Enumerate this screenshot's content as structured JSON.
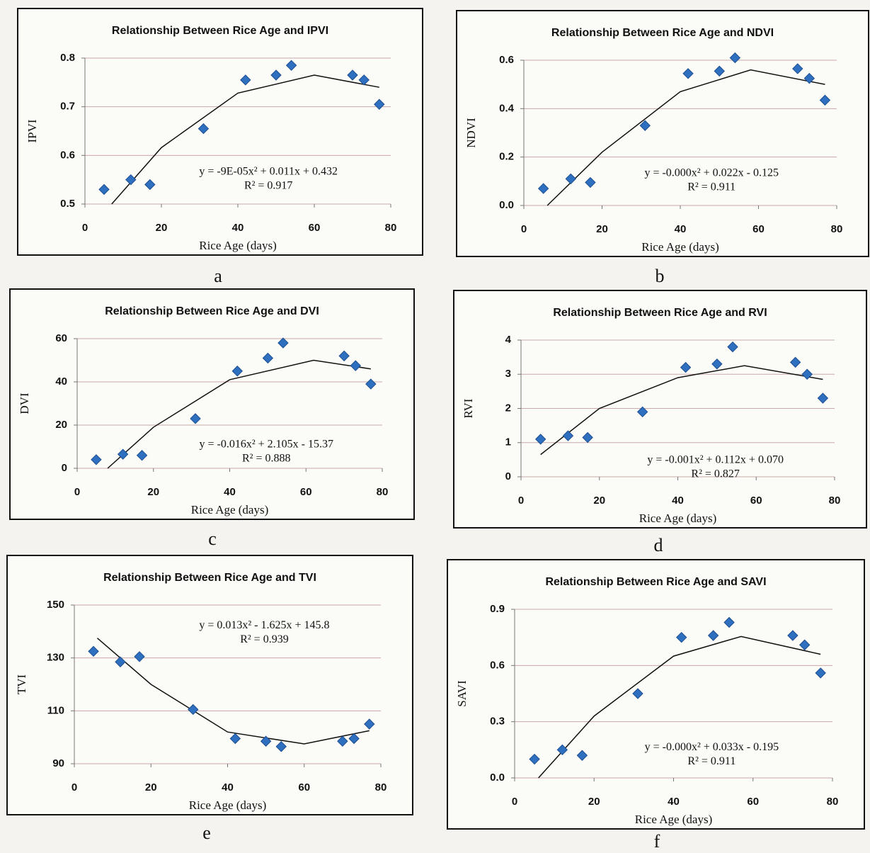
{
  "chart_data": [
    {
      "type": "scatter",
      "title": "Relationship Between Rice Age and IPVI",
      "x_label": "Rice Age (days)",
      "y_label": "IPVI",
      "panel_label": "a",
      "points": {
        "x": [
          5,
          12,
          17,
          31,
          42,
          50,
          54,
          70,
          73,
          77
        ],
        "y": [
          0.53,
          0.55,
          0.54,
          0.655,
          0.755,
          0.765,
          0.785,
          0.765,
          0.755,
          0.705
        ]
      },
      "trendline": {
        "x": [
          7,
          20,
          40,
          60,
          77
        ],
        "y": [
          0.5,
          0.616,
          0.728,
          0.765,
          0.74
        ]
      },
      "equation": "y = -9E-05x² + 0.011x + 0.432",
      "r_squared": "R² = 0.917",
      "xlim": [
        0,
        80
      ],
      "xticks": [
        0,
        20,
        40,
        60,
        80
      ],
      "ylim": [
        0.5,
        0.8
      ],
      "yticks": [
        0.5,
        0.6,
        0.7,
        0.8
      ],
      "color": "#2e6fc0",
      "grid": true
    },
    {
      "type": "scatter",
      "title": "Relationship Between Rice Age and NDVI",
      "x_label": "Rice Age (days)",
      "y_label": "NDVI",
      "panel_label": "b",
      "points": {
        "x": [
          5,
          12,
          17,
          31,
          42,
          50,
          54,
          70,
          73,
          77
        ],
        "y": [
          0.07,
          0.11,
          0.095,
          0.33,
          0.545,
          0.555,
          0.61,
          0.565,
          0.525,
          0.435
        ]
      },
      "trendline": {
        "x": [
          6,
          20,
          40,
          58,
          77
        ],
        "y": [
          0,
          0.22,
          0.47,
          0.56,
          0.5
        ]
      },
      "equation": "y = -0.000x² + 0.022x - 0.125",
      "r_squared": "R² = 0.911",
      "xlim": [
        0,
        80
      ],
      "xticks": [
        0,
        20,
        40,
        60,
        80
      ],
      "ylim": [
        0,
        0.6
      ],
      "yticks": [
        {
          "value": 0,
          "label": "0.0"
        },
        0.2,
        0.4,
        0.6
      ],
      "color": "#2e6fc0",
      "grid": true
    },
    {
      "type": "scatter",
      "title": "Relationship Between Rice Age and DVI",
      "x_label": "Rice Age (days)",
      "y_label": "DVI",
      "panel_label": "c",
      "points": {
        "x": [
          5,
          12,
          17,
          31,
          42,
          50,
          54,
          70,
          73,
          77
        ],
        "y": [
          4,
          6.5,
          6,
          23,
          45,
          51,
          58,
          52,
          47.5,
          39
        ]
      },
      "trendline": {
        "x": [
          8,
          20,
          40,
          62,
          77
        ],
        "y": [
          0,
          19,
          41,
          50,
          46
        ]
      },
      "equation": "y = -0.016x² + 2.105x - 15.37",
      "r_squared": "R² = 0.888",
      "xlim": [
        0,
        80
      ],
      "xticks": [
        0,
        20,
        40,
        60,
        80
      ],
      "ylim": [
        0,
        60
      ],
      "yticks": [
        0,
        20,
        40,
        60
      ],
      "color": "#2e6fc0",
      "grid": true
    },
    {
      "type": "scatter",
      "title": "Relationship Between Rice Age and RVI",
      "x_label": "Rice Age (days)",
      "y_label": "RVI",
      "panel_label": "d",
      "points": {
        "x": [
          5,
          12,
          17,
          31,
          42,
          50,
          54,
          70,
          73,
          77
        ],
        "y": [
          1.1,
          1.2,
          1.15,
          1.9,
          3.2,
          3.3,
          3.8,
          3.35,
          3.0,
          2.3
        ]
      },
      "trendline": {
        "x": [
          5,
          20,
          40,
          57,
          77
        ],
        "y": [
          0.65,
          2.0,
          2.9,
          3.25,
          2.85
        ]
      },
      "equation": "y = -0.001x² + 0.112x + 0.070",
      "r_squared": "R² = 0.827",
      "xlim": [
        0,
        80
      ],
      "xticks": [
        0,
        20,
        40,
        60,
        80
      ],
      "ylim": [
        0,
        4
      ],
      "yticks": [
        0,
        1,
        2,
        3,
        4
      ],
      "color": "#2e6fc0",
      "grid": true
    },
    {
      "type": "scatter",
      "title": "Relationship Between Rice Age and TVI",
      "x_label": "Rice Age (days)",
      "y_label": "TVI",
      "panel_label": "e",
      "points": {
        "x": [
          5,
          12,
          17,
          31,
          42,
          50,
          54,
          70,
          73,
          77
        ],
        "y": [
          132.5,
          128.5,
          130.5,
          110.5,
          99.5,
          98.5,
          96.5,
          98.5,
          99.5,
          105
        ]
      },
      "trendline": {
        "x": [
          6,
          20,
          40,
          60,
          77
        ],
        "y": [
          137.5,
          120,
          102,
          97.5,
          102.5
        ]
      },
      "equation": "y = 0.013x² - 1.625x + 145.8",
      "r_squared": "R² = 0.939",
      "xlim": [
        0,
        80
      ],
      "xticks": [
        0,
        20,
        40,
        60,
        80
      ],
      "ylim": [
        90,
        150
      ],
      "yticks": [
        90,
        110,
        130,
        150
      ],
      "color": "#2e6fc0",
      "grid": true
    },
    {
      "type": "scatter",
      "title": "Relationship Between Rice Age and SAVI",
      "x_label": "Rice Age (days)",
      "y_label": "SAVI",
      "panel_label": "f",
      "points": {
        "x": [
          5,
          12,
          17,
          31,
          42,
          50,
          54,
          70,
          73,
          77
        ],
        "y": [
          0.1,
          0.15,
          0.12,
          0.45,
          0.75,
          0.76,
          0.83,
          0.76,
          0.71,
          0.56
        ]
      },
      "trendline": {
        "x": [
          6,
          20,
          40,
          57,
          77
        ],
        "y": [
          0,
          0.33,
          0.65,
          0.755,
          0.66
        ]
      },
      "equation": "y = -0.000x² + 0.033x - 0.195",
      "r_squared": "R² = 0.911",
      "xlim": [
        0,
        80
      ],
      "xticks": [
        0,
        20,
        40,
        60,
        80
      ],
      "ylim": [
        0,
        0.9
      ],
      "yticks": [
        {
          "value": 0,
          "label": "0.0"
        },
        0.3,
        0.6,
        0.9
      ],
      "color": "#2e6fc0",
      "grid": true
    }
  ]
}
